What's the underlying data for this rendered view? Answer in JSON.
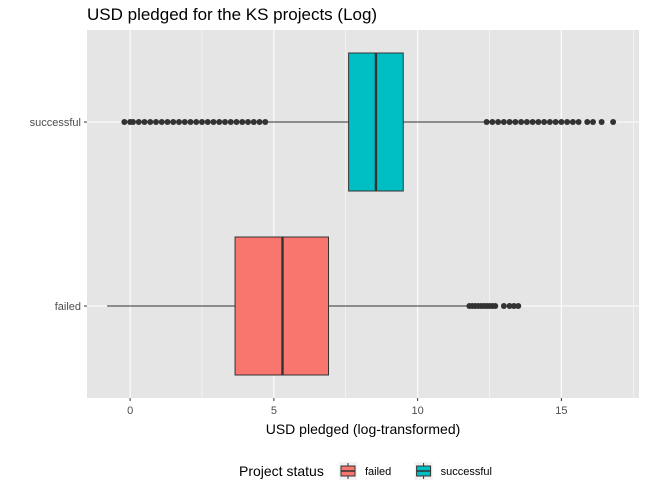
{
  "chart_data": {
    "type": "boxplot",
    "orientation": "horizontal",
    "title": "USD pledged for the KS projects (Log)",
    "xlabel": "USD pledged (log-transformed)",
    "ylabel": "",
    "xlim": [
      -1.5,
      17.7
    ],
    "x_ticks": [
      0,
      5,
      10,
      15
    ],
    "x_tick_labels": [
      "0",
      "5",
      "10",
      "15"
    ],
    "grid": true,
    "legend": {
      "title": "Project status",
      "position": "bottom",
      "entries": [
        "failed",
        "successful"
      ]
    },
    "categories": [
      "successful",
      "failed"
    ],
    "series": [
      {
        "category": "successful",
        "legend_label": "successful",
        "color": "#00bfc4",
        "q1": 7.6,
        "median": 8.55,
        "q3": 9.5,
        "whisker_low": 4.8,
        "whisker_high": 12.3,
        "outliers": [
          -0.2,
          0.0,
          0.1,
          0.3,
          0.5,
          0.7,
          0.9,
          1.1,
          1.3,
          1.5,
          1.7,
          1.9,
          2.1,
          2.3,
          2.5,
          2.7,
          2.9,
          3.1,
          3.3,
          3.5,
          3.7,
          3.9,
          4.1,
          4.3,
          4.5,
          4.7,
          12.4,
          12.6,
          12.8,
          13.0,
          13.2,
          13.4,
          13.6,
          13.8,
          14.0,
          14.2,
          14.4,
          14.6,
          14.8,
          15.0,
          15.2,
          15.4,
          15.6,
          15.9,
          16.1,
          16.4,
          16.8
        ]
      },
      {
        "category": "failed",
        "legend_label": "failed",
        "color": "#f8766d",
        "q1": 3.65,
        "median": 5.3,
        "q3": 6.9,
        "whisker_low": -0.8,
        "whisker_high": 11.75,
        "outliers": [
          11.8,
          11.9,
          12.0,
          12.1,
          12.2,
          12.3,
          12.4,
          12.5,
          12.6,
          12.7,
          13.0,
          13.2,
          13.35,
          13.5
        ]
      }
    ]
  },
  "colors": {
    "panel_background": "#e5e5e5",
    "gridline": "#ffffff",
    "box_outline": "#333333",
    "outlier": "#333333",
    "successful": "#00bfc4",
    "failed": "#f8766d"
  }
}
